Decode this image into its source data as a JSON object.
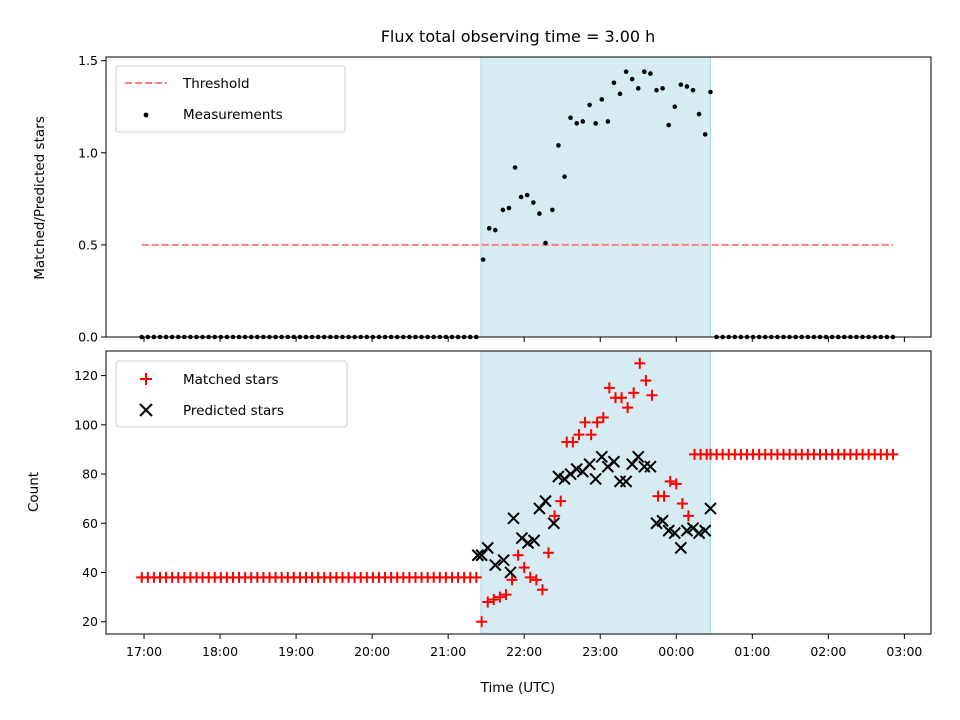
{
  "chart_data": {
    "type": "scatter",
    "title": "Flux total observing time = 3.00 h",
    "xlabel": "Time (UTC)",
    "x_unit": "hours (17.0 = 17:00; values above 24 are past midnight)",
    "xlim": [
      16.5,
      27.35
    ],
    "xticks": [
      17,
      18,
      19,
      20,
      21,
      22,
      23,
      24,
      25,
      26,
      27
    ],
    "xtick_labels": [
      "17:00",
      "18:00",
      "19:00",
      "20:00",
      "21:00",
      "22:00",
      "23:00",
      "00:00",
      "01:00",
      "02:00",
      "03:00"
    ],
    "shaded_interval": [
      21.43,
      24.45
    ],
    "shade_color": "#add8e6",
    "panels": [
      {
        "ylabel": "Matched/Predicted stars",
        "ylim": [
          0,
          1.52
        ],
        "yticks": [
          0.0,
          0.5,
          1.0,
          1.5
        ],
        "ytick_labels": [
          "0.0",
          "0.5",
          "1.0",
          "1.5"
        ],
        "legend": {
          "position": "upper left",
          "entries": [
            "Threshold",
            "Measurements"
          ]
        },
        "series": [
          {
            "name": "Threshold",
            "style": "dashed-line",
            "color": "#ff7f7f",
            "x": [
              16.97,
              26.85
            ],
            "y": [
              0.5,
              0.5
            ]
          },
          {
            "name": "Measurements",
            "style": "dot",
            "color": "#000000",
            "x": [
              16.97,
              17.05,
              17.13,
              17.21,
              17.29,
              17.37,
              17.45,
              17.53,
              17.61,
              17.69,
              17.77,
              17.85,
              17.93,
              18.01,
              18.09,
              18.17,
              18.25,
              18.33,
              18.41,
              18.49,
              18.57,
              18.65,
              18.73,
              18.81,
              18.89,
              18.97,
              19.05,
              19.13,
              19.21,
              19.29,
              19.37,
              19.45,
              19.53,
              19.61,
              19.69,
              19.77,
              19.85,
              19.93,
              20.01,
              20.09,
              20.17,
              20.25,
              20.33,
              20.41,
              20.49,
              20.57,
              20.65,
              20.73,
              20.81,
              20.89,
              20.97,
              21.05,
              21.13,
              21.21,
              21.29,
              21.37,
              21.46,
              21.54,
              21.62,
              21.72,
              21.8,
              21.88,
              21.96,
              22.04,
              22.12,
              22.2,
              22.28,
              22.37,
              22.45,
              22.53,
              22.61,
              22.69,
              22.77,
              22.86,
              22.94,
              23.02,
              23.1,
              23.18,
              23.26,
              23.34,
              23.42,
              23.5,
              23.58,
              23.66,
              23.74,
              23.82,
              23.9,
              23.98,
              24.06,
              24.14,
              24.22,
              24.3,
              24.38,
              24.45,
              24.53,
              24.61,
              24.69,
              24.77,
              24.85,
              24.93,
              25.01,
              25.09,
              25.17,
              25.25,
              25.33,
              25.41,
              25.49,
              25.57,
              25.65,
              25.73,
              25.81,
              25.89,
              25.97,
              26.05,
              26.13,
              26.21,
              26.29,
              26.37,
              26.45,
              26.53,
              26.61,
              26.69,
              26.77,
              26.85
            ],
            "y": [
              0,
              0,
              0,
              0,
              0,
              0,
              0,
              0,
              0,
              0,
              0,
              0,
              0,
              0,
              0,
              0,
              0,
              0,
              0,
              0,
              0,
              0,
              0,
              0,
              0,
              0,
              0,
              0,
              0,
              0,
              0,
              0,
              0,
              0,
              0,
              0,
              0,
              0,
              0,
              0,
              0,
              0,
              0,
              0,
              0,
              0,
              0,
              0,
              0,
              0,
              0,
              0,
              0,
              0,
              0,
              0,
              0.42,
              0.59,
              0.58,
              0.69,
              0.7,
              0.92,
              0.76,
              0.77,
              0.73,
              0.67,
              0.51,
              0.69,
              1.04,
              0.87,
              1.19,
              1.16,
              1.17,
              1.26,
              1.16,
              1.29,
              1.17,
              1.38,
              1.32,
              1.44,
              1.4,
              1.35,
              1.44,
              1.43,
              1.34,
              1.35,
              1.15,
              1.25,
              1.37,
              1.36,
              1.34,
              1.21,
              1.1,
              1.33,
              0,
              0,
              0,
              0,
              0,
              0,
              0,
              0,
              0,
              0,
              0,
              0,
              0,
              0,
              0,
              0,
              0,
              0,
              0,
              0,
              0,
              0,
              0,
              0,
              0,
              0,
              0,
              0,
              0,
              0
            ]
          }
        ]
      },
      {
        "ylabel": "Count",
        "ylim": [
          15,
          130
        ],
        "yticks": [
          20,
          40,
          60,
          80,
          100,
          120
        ],
        "ytick_labels": [
          "20",
          "40",
          "60",
          "80",
          "100",
          "120"
        ],
        "legend": {
          "position": "upper left",
          "entries": [
            "Matched stars",
            "Predicted stars"
          ]
        },
        "series": [
          {
            "name": "Matched stars",
            "style": "plus",
            "color": "#ff0000",
            "x": [
              16.97,
              17.05,
              17.13,
              17.21,
              17.29,
              17.37,
              17.45,
              17.53,
              17.61,
              17.69,
              17.77,
              17.85,
              17.93,
              18.01,
              18.09,
              18.17,
              18.25,
              18.33,
              18.41,
              18.49,
              18.57,
              18.65,
              18.73,
              18.81,
              18.89,
              18.97,
              19.05,
              19.13,
              19.21,
              19.29,
              19.37,
              19.45,
              19.53,
              19.61,
              19.69,
              19.77,
              19.85,
              19.93,
              20.01,
              20.09,
              20.17,
              20.25,
              20.33,
              20.41,
              20.49,
              20.57,
              20.65,
              20.73,
              20.81,
              20.89,
              20.97,
              21.05,
              21.13,
              21.21,
              21.29,
              21.37,
              21.44,
              21.52,
              21.6,
              21.68,
              21.76,
              21.84,
              21.92,
              22.0,
              22.08,
              22.16,
              22.24,
              22.32,
              22.4,
              22.48,
              22.56,
              22.64,
              22.72,
              22.8,
              22.88,
              22.96,
              23.04,
              23.12,
              23.2,
              23.28,
              23.36,
              23.44,
              23.52,
              23.6,
              23.68,
              23.76,
              23.84,
              23.92,
              24.0,
              24.08,
              24.16,
              24.24,
              24.32,
              24.4,
              24.45,
              24.53,
              24.61,
              24.69,
              24.77,
              24.85,
              24.93,
              25.01,
              25.09,
              25.17,
              25.25,
              25.33,
              25.41,
              25.49,
              25.57,
              25.65,
              25.73,
              25.81,
              25.89,
              25.97,
              26.05,
              26.13,
              26.21,
              26.29,
              26.37,
              26.45,
              26.53,
              26.61,
              26.69,
              26.77,
              26.85
            ],
            "y": [
              38,
              38,
              38,
              38,
              38,
              38,
              38,
              38,
              38,
              38,
              38,
              38,
              38,
              38,
              38,
              38,
              38,
              38,
              38,
              38,
              38,
              38,
              38,
              38,
              38,
              38,
              38,
              38,
              38,
              38,
              38,
              38,
              38,
              38,
              38,
              38,
              38,
              38,
              38,
              38,
              38,
              38,
              38,
              38,
              38,
              38,
              38,
              38,
              38,
              38,
              38,
              38,
              38,
              38,
              38,
              38,
              20,
              28,
              29,
              30,
              31,
              37,
              47,
              42,
              38,
              37,
              33,
              48,
              63,
              69,
              93,
              93,
              96,
              101,
              96,
              101,
              103,
              115,
              111,
              111,
              107,
              113,
              125,
              118,
              112,
              71,
              71,
              77,
              76,
              68,
              63,
              88,
              88,
              88,
              88,
              88,
              88,
              88,
              88,
              88,
              88,
              88,
              88,
              88,
              88,
              88,
              88,
              88,
              88,
              88,
              88,
              88,
              88,
              88,
              88,
              88,
              88,
              88,
              88,
              88,
              88,
              88,
              88,
              88,
              88
            ]
          },
          {
            "name": "Predicted stars",
            "style": "x",
            "color": "#000000",
            "x": [
              21.39,
              21.44,
              21.52,
              21.62,
              21.73,
              21.82,
              21.86,
              21.97,
              22.05,
              22.13,
              22.2,
              22.28,
              22.39,
              22.45,
              22.53,
              22.61,
              22.69,
              22.77,
              22.86,
              22.94,
              23.02,
              23.1,
              23.18,
              23.26,
              23.34,
              23.42,
              23.5,
              23.58,
              23.66,
              23.74,
              23.82,
              23.9,
              23.98,
              24.06,
              24.14,
              24.22,
              24.3,
              24.38,
              24.45
            ],
            "y": [
              47,
              47,
              50,
              43,
              45,
              40,
              62,
              54,
              52,
              53,
              66,
              69,
              60,
              79,
              78,
              80,
              82,
              81,
              84,
              78,
              87,
              83,
              85,
              77,
              77,
              84,
              87,
              83,
              83,
              60,
              61,
              57,
              56,
              50,
              57,
              58,
              56,
              57,
              66
            ]
          }
        ]
      }
    ]
  }
}
